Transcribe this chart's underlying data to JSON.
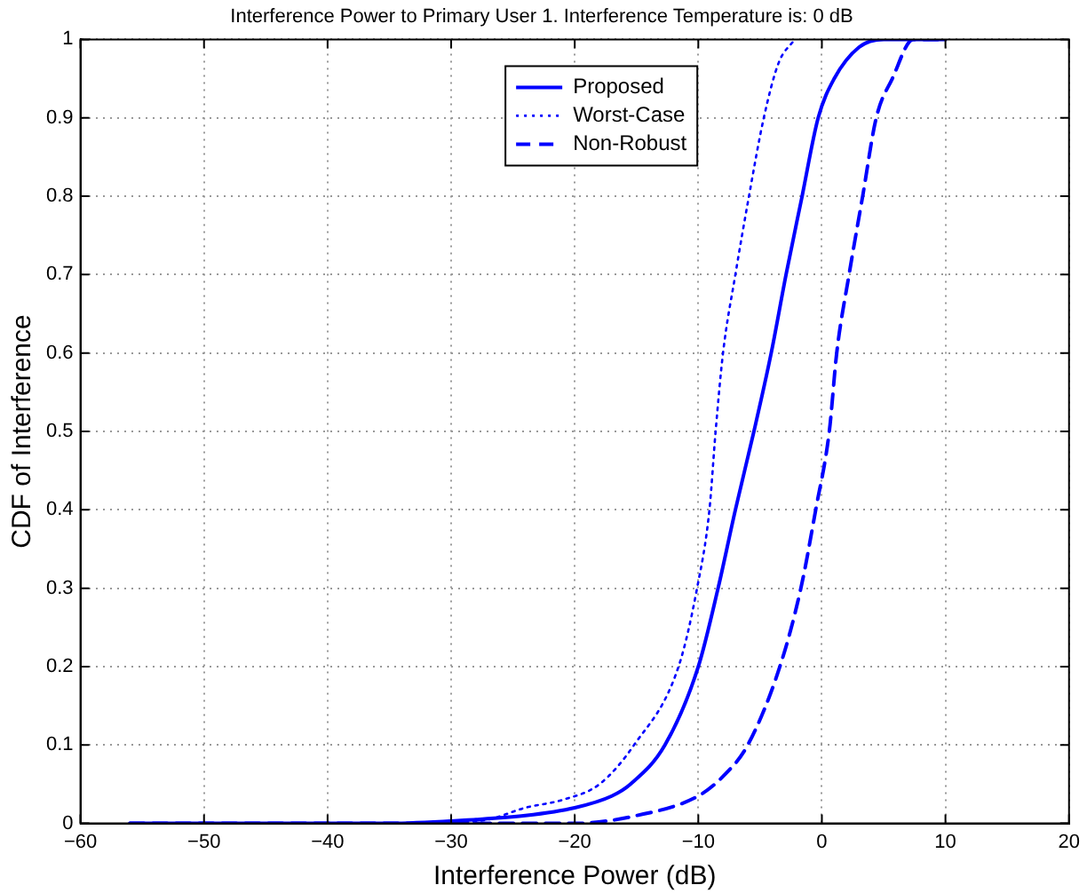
{
  "chart_data": {
    "type": "line",
    "title": "Interference Power to Primary User 1. Interference Temperature is: 0 dB",
    "xlabel": "Interference Power (dB)",
    "ylabel": "CDF of Interference",
    "xlim": [
      -60,
      20
    ],
    "xticks": [
      -60,
      -50,
      -40,
      -30,
      -20,
      -10,
      0,
      10,
      20
    ],
    "ylim": [
      0,
      1
    ],
    "yticks": [
      0,
      0.1,
      0.2,
      0.3,
      0.4,
      0.5,
      0.6,
      0.7,
      0.8,
      0.9,
      1
    ],
    "grid": true,
    "legend": "top",
    "marker": "none",
    "series": [
      {
        "name": "Proposed",
        "color": "#0000ff",
        "line_style": "solid",
        "x": [
          -56,
          -40,
          -35,
          -28,
          -24,
          -20,
          -17,
          -15.5,
          -12.7,
          -10,
          -8.4,
          -7,
          -5.5,
          -4.1,
          -2.9,
          -1.6,
          -0.3,
          1,
          3,
          5,
          10
        ],
        "values": [
          0,
          0,
          0,
          0.005,
          0.01,
          0.02,
          0.035,
          0.05,
          0.1,
          0.2,
          0.3,
          0.4,
          0.5,
          0.6,
          0.7,
          0.8,
          0.9,
          0.95,
          0.99,
          1,
          1
        ]
      },
      {
        "name": "Worst-Case",
        "color": "#0000ff",
        "line_style": "dotted",
        "x": [
          -56,
          -40,
          -32,
          -27,
          -24,
          -21,
          -18,
          -15.2,
          -11.6,
          -10.1,
          -9.1,
          -8.6,
          -8,
          -7,
          -5.9,
          -4.7,
          -3.5,
          -2.2
        ],
        "values": [
          0,
          0,
          0,
          0.005,
          0.02,
          0.03,
          0.05,
          0.1,
          0.2,
          0.3,
          0.4,
          0.5,
          0.6,
          0.7,
          0.8,
          0.9,
          0.97,
          1
        ]
      },
      {
        "name": "Non-Robust",
        "color": "#0000ff",
        "line_style": "dashed",
        "x": [
          -56,
          -30,
          -20,
          -15,
          -10,
          -8,
          -6,
          -3.4,
          -1.7,
          -0.5,
          0.6,
          1.2,
          2.2,
          3.3,
          4.4,
          5.7,
          7.4,
          10
        ],
        "values": [
          0,
          0,
          0,
          0.01,
          0.035,
          0.06,
          0.1,
          0.2,
          0.3,
          0.4,
          0.5,
          0.6,
          0.7,
          0.8,
          0.9,
          0.95,
          1,
          1
        ]
      }
    ]
  }
}
